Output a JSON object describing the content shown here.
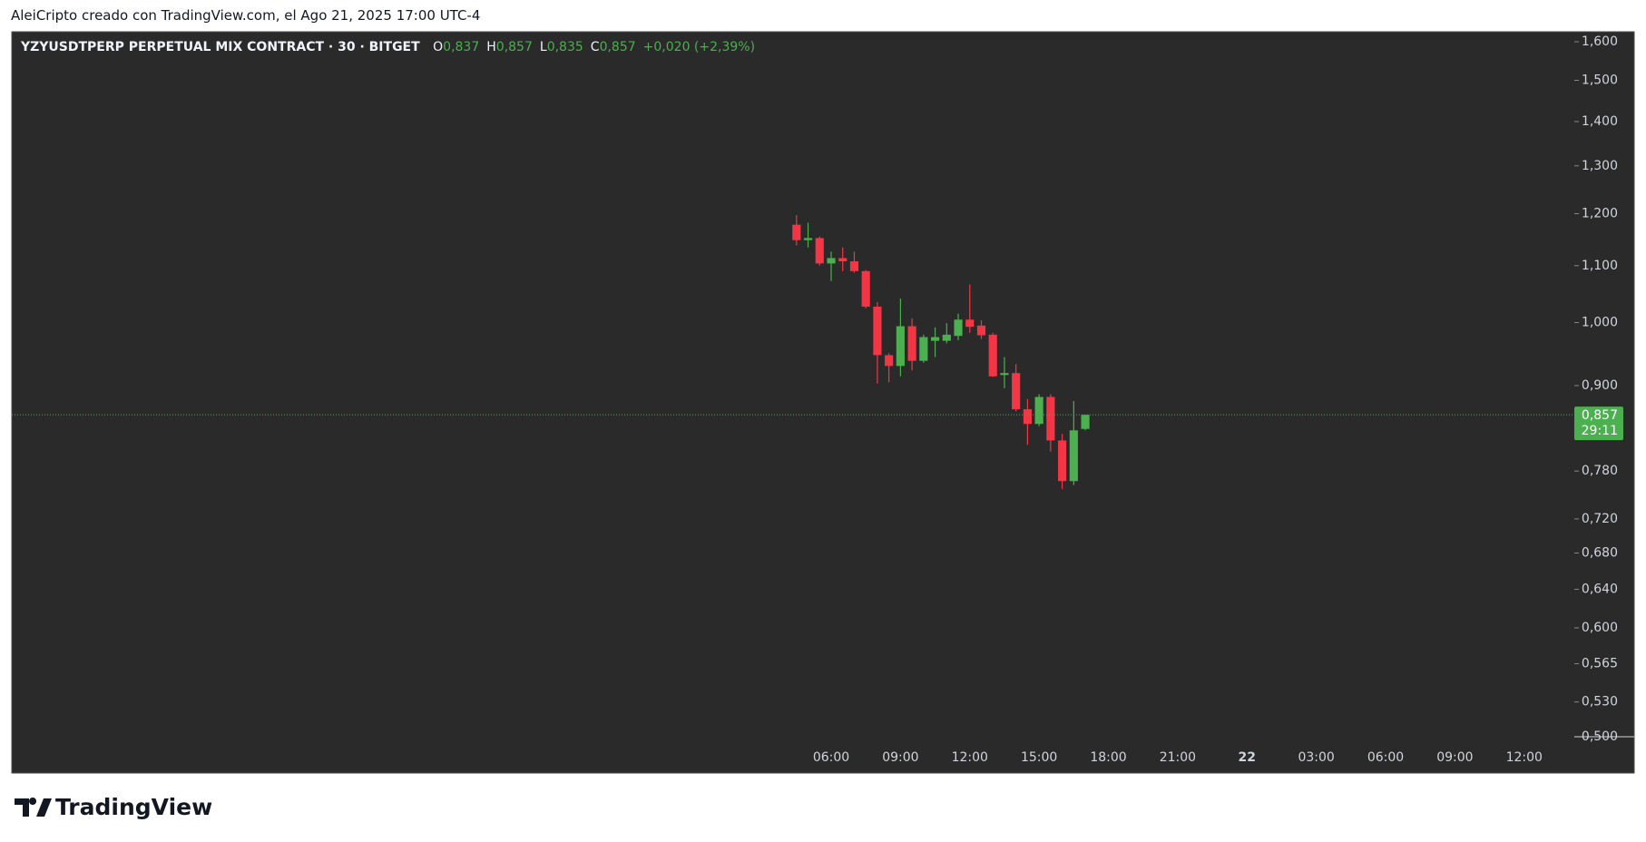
{
  "header": {
    "caption": "AleiCripto creado con TradingView.com, el Ago 21, 2025 17:00 UTC-4"
  },
  "chart_data": {
    "type": "candlestick",
    "title": "YZYUSDTPERP PERPETUAL MIX CONTRACT · 30 · BITGET",
    "ohlc_legend": [
      {
        "label": "O",
        "value": "0,837"
      },
      {
        "label": "H",
        "value": "0,857"
      },
      {
        "label": "L",
        "value": "0,835"
      },
      {
        "label": "C",
        "value": "0,857"
      }
    ],
    "change": "+0,020 (+2,39%)",
    "x": [
      4.5,
      5,
      5.5,
      6,
      6.5,
      7,
      7.5,
      8,
      8.5,
      9,
      9.5,
      10,
      10.5,
      11,
      11.5,
      12,
      12.5,
      13,
      13.5,
      14,
      14.5,
      15,
      15.5,
      16,
      16.5,
      17
    ],
    "open": [
      1.178,
      1.148,
      1.152,
      1.104,
      1.114,
      1.108,
      1.09,
      1.027,
      0.947,
      0.93,
      0.994,
      0.938,
      0.97,
      0.97,
      0.978,
      1.005,
      0.995,
      0.98,
      0.916,
      0.919,
      0.865,
      0.844,
      0.883,
      0.821,
      0.767,
      0.837
    ],
    "high": [
      1.197,
      1.182,
      1.155,
      1.126,
      1.134,
      1.126,
      1.092,
      1.035,
      0.95,
      1.041,
      1.007,
      0.98,
      0.992,
      0.999,
      1.015,
      1.066,
      1.004,
      0.983,
      0.944,
      0.933,
      0.88,
      0.887,
      0.887,
      0.83,
      0.877,
      0.857
    ],
    "low": [
      1.138,
      1.134,
      1.1,
      1.072,
      1.09,
      1.087,
      1.024,
      0.903,
      0.905,
      0.914,
      0.923,
      0.935,
      0.944,
      0.966,
      0.971,
      0.983,
      0.973,
      0.913,
      0.896,
      0.862,
      0.815,
      0.841,
      0.806,
      0.757,
      0.762,
      0.835
    ],
    "close": [
      1.148,
      1.152,
      1.104,
      1.114,
      1.108,
      1.09,
      1.027,
      0.947,
      0.93,
      0.994,
      0.938,
      0.976,
      0.976,
      0.98,
      1.005,
      0.993,
      0.979,
      0.914,
      0.919,
      0.865,
      0.844,
      0.883,
      0.821,
      0.767,
      0.835,
      0.857
    ],
    "up_color": "#4caf50",
    "down_color": "#f23645",
    "log_scale": true,
    "ylim": [
      0.497,
      1.627
    ],
    "yticks": [
      {
        "value": 1.6,
        "label": "1,600"
      },
      {
        "value": 1.5,
        "label": "1,500"
      },
      {
        "value": 1.4,
        "label": "1,400"
      },
      {
        "value": 1.3,
        "label": "1,300"
      },
      {
        "value": 1.2,
        "label": "1,200"
      },
      {
        "value": 1.1,
        "label": "1,100"
      },
      {
        "value": 1.0,
        "label": "1,000"
      },
      {
        "value": 0.9,
        "label": "0,900"
      },
      {
        "value": 0.78,
        "label": "0,780"
      },
      {
        "value": 0.72,
        "label": "0,720"
      },
      {
        "value": 0.68,
        "label": "0,680"
      },
      {
        "value": 0.64,
        "label": "0,640"
      },
      {
        "value": 0.6,
        "label": "0,600"
      },
      {
        "value": 0.565,
        "label": "0,565"
      },
      {
        "value": 0.53,
        "label": "0,530"
      },
      {
        "value": 0.5,
        "label": "0,500"
      }
    ],
    "xlim": [
      -29.47,
      38.17
    ],
    "xticks": [
      {
        "value": 6,
        "label": "06:00"
      },
      {
        "value": 9,
        "label": "09:00"
      },
      {
        "value": 12,
        "label": "12:00"
      },
      {
        "value": 15,
        "label": "15:00"
      },
      {
        "value": 18,
        "label": "18:00"
      },
      {
        "value": 21,
        "label": "21:00"
      },
      {
        "value": 24,
        "label": "22"
      },
      {
        "value": 27,
        "label": "03:00"
      },
      {
        "value": 30,
        "label": "06:00"
      },
      {
        "value": 33,
        "label": "09:00"
      },
      {
        "value": 36,
        "label": "12:00"
      }
    ],
    "last_price": {
      "value": 0.857,
      "label": "0,857"
    },
    "countdown": "29:11"
  },
  "footer": {
    "logo": "TradingView"
  }
}
